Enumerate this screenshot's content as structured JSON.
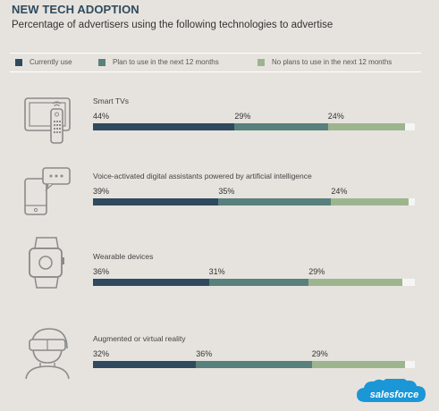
{
  "header": {
    "title": "NEW TECH ADOPTION",
    "subtitle": "Percentage of advertisers using the following technologies to advertise"
  },
  "brand": {
    "logo_text": "salesforce",
    "color": "#1b96d6"
  },
  "colors": {
    "currently": "#2f4a5e",
    "plan": "#58807c",
    "no_plans": "#9db58e",
    "track": "#f5f5f5"
  },
  "chart_data": {
    "type": "bar",
    "orientation": "horizontal",
    "stacked": true,
    "title": "NEW TECH ADOPTION",
    "subtitle": "Percentage of advertisers using the following technologies to advertise",
    "xlim": [
      0,
      100
    ],
    "legend_position": "top",
    "categories": [
      "Smart TVs",
      "Voice-activated digital assistants powered by artificial intelligence",
      "Wearable devices",
      "Augmented or virtual reality"
    ],
    "series": [
      {
        "name": "Currently use",
        "values": [
          44,
          39,
          36,
          32
        ]
      },
      {
        "name": "Plan to use in the next 12 months",
        "values": [
          29,
          35,
          31,
          36
        ]
      },
      {
        "name": "No plans to use in the next 12 months",
        "values": [
          24,
          24,
          29,
          29
        ]
      }
    ],
    "icons": [
      "smart-tv-icon",
      "smartphone-chat-icon",
      "smartwatch-icon",
      "vr-headset-icon"
    ]
  }
}
